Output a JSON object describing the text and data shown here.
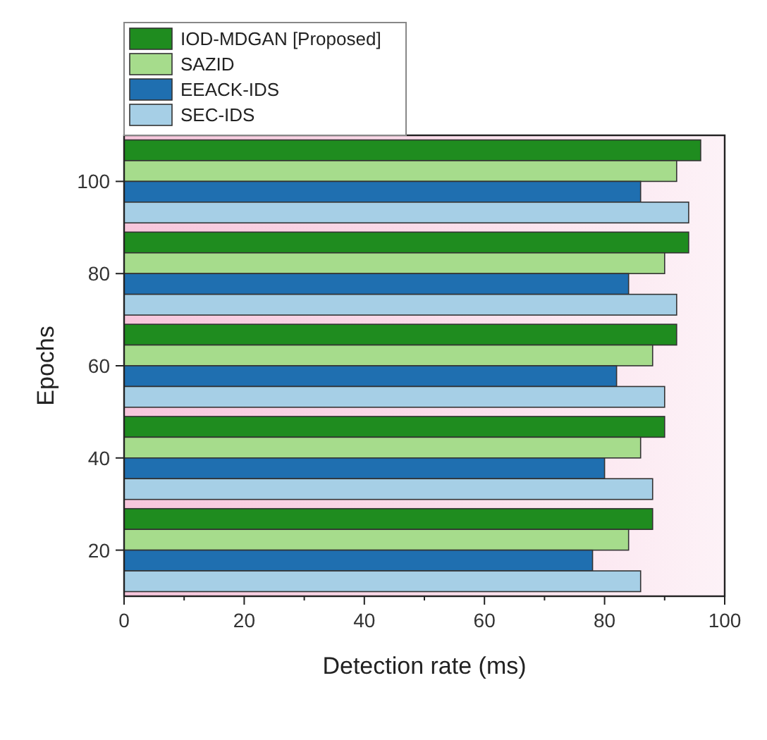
{
  "chart_data": {
    "type": "bar",
    "orientation": "horizontal",
    "xlabel": "Detection rate (ms)",
    "ylabel": "Epochs",
    "categories": [
      "100",
      "80",
      "60",
      "40",
      "20"
    ],
    "series": [
      {
        "name": "IOD-MDGAN [Proposed]",
        "color": "#1f8c1f",
        "values": [
          96,
          94,
          92,
          90,
          88
        ]
      },
      {
        "name": "SAZID",
        "color": "#a6dc8c",
        "values": [
          92,
          90,
          88,
          86,
          84
        ]
      },
      {
        "name": "EEACK-IDS",
        "color": "#1f6fb0",
        "values": [
          86,
          84,
          82,
          80,
          78
        ]
      },
      {
        "name": "SEC-IDS",
        "color": "#a6cfe6",
        "values": [
          94,
          92,
          90,
          88,
          86
        ]
      }
    ],
    "xlim": [
      0,
      100
    ],
    "xticks": [
      0,
      20,
      40,
      60,
      80,
      100
    ],
    "legend": "top left"
  }
}
